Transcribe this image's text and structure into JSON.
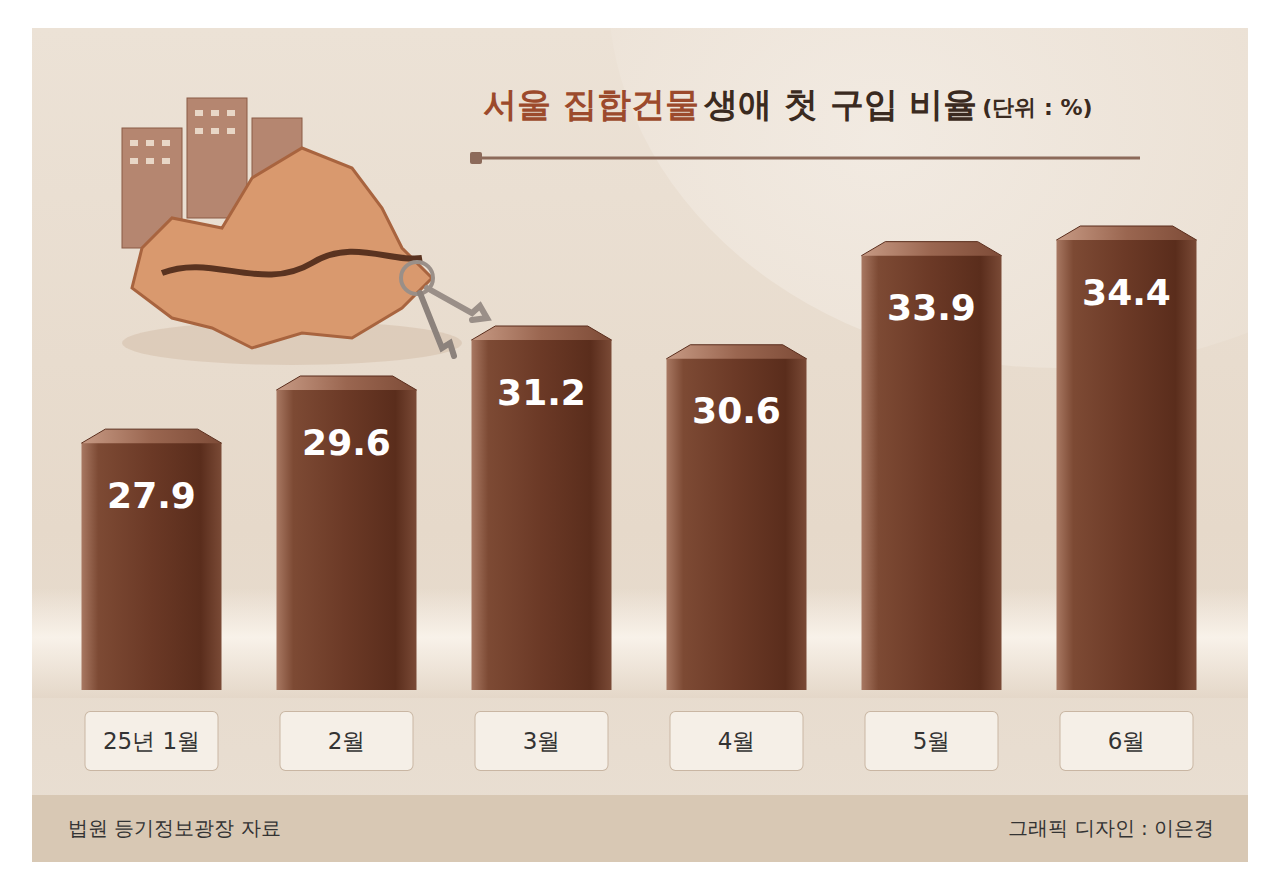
{
  "chart_data": {
    "type": "bar",
    "title": "서울 집합건물 생애 첫 구입 비율",
    "subtitle": "(단위 : %)",
    "categories": [
      "25년 1월",
      "2월",
      "3월",
      "4월",
      "5월",
      "6월"
    ],
    "values": [
      27.9,
      29.6,
      31.2,
      30.6,
      33.9,
      34.4
    ],
    "color": "#6b3926",
    "ylim": [
      20,
      36
    ],
    "grid": false,
    "data_labels": true,
    "tick_labels": "x",
    "annotations": [
      "법원 등기정보광장 자료",
      "그래픽 디자인 : 이은경"
    ]
  }
}
